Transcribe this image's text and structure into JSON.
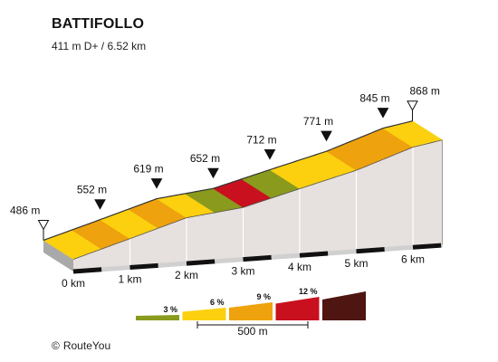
{
  "chart_data": {
    "type": "area",
    "title": "BATTIFOLLO",
    "subtitle": "411 m D+ / 6.52 km",
    "x_unit": "km",
    "y_unit": "m",
    "xlim": [
      0,
      6.52
    ],
    "x_ticks": [
      {
        "value": 0,
        "label": "0 km"
      },
      {
        "value": 1,
        "label": "1 km"
      },
      {
        "value": 2,
        "label": "2 km"
      },
      {
        "value": 3,
        "label": "3 km"
      },
      {
        "value": 4,
        "label": "4 km"
      },
      {
        "value": 5,
        "label": "5 km"
      },
      {
        "value": 6,
        "label": "6 km"
      }
    ],
    "elevation_points": [
      {
        "distance_km": 0,
        "elevation_m": 486,
        "label": "486 m",
        "marker": "start"
      },
      {
        "distance_km": 1,
        "elevation_m": 552,
        "label": "552 m",
        "marker": "km"
      },
      {
        "distance_km": 2,
        "elevation_m": 619,
        "label": "619 m",
        "marker": "km"
      },
      {
        "distance_km": 3,
        "elevation_m": 652,
        "label": "652 m",
        "marker": "km"
      },
      {
        "distance_km": 4,
        "elevation_m": 712,
        "label": "712 m",
        "marker": "km"
      },
      {
        "distance_km": 5,
        "elevation_m": 771,
        "label": "771 m",
        "marker": "km"
      },
      {
        "distance_km": 6,
        "elevation_m": 845,
        "label": "845 m",
        "marker": "km"
      },
      {
        "distance_km": 6.52,
        "elevation_m": 868,
        "label": "868 m",
        "marker": "end"
      }
    ],
    "segments": [
      {
        "from_km": 0.0,
        "to_km": 0.5,
        "class": 6
      },
      {
        "from_km": 0.5,
        "to_km": 1.0,
        "class": 9
      },
      {
        "from_km": 1.0,
        "to_km": 1.5,
        "class": 6
      },
      {
        "from_km": 1.5,
        "to_km": 2.0,
        "class": 9
      },
      {
        "from_km": 2.0,
        "to_km": 2.5,
        "class": 6
      },
      {
        "from_km": 2.5,
        "to_km": 3.0,
        "class": 3
      },
      {
        "from_km": 3.0,
        "to_km": 3.5,
        "class": 12
      },
      {
        "from_km": 3.5,
        "to_km": 4.0,
        "class": 3
      },
      {
        "from_km": 4.0,
        "to_km": 4.5,
        "class": 6
      },
      {
        "from_km": 4.5,
        "to_km": 5.0,
        "class": 6
      },
      {
        "from_km": 5.0,
        "to_km": 5.5,
        "class": 9
      },
      {
        "from_km": 5.5,
        "to_km": 6.0,
        "class": 9
      },
      {
        "from_km": 6.0,
        "to_km": 6.52,
        "class": 6
      }
    ],
    "legend": {
      "items": [
        {
          "label": "3 %",
          "color": "#8a9a1c"
        },
        {
          "label": "6 %",
          "color": "#fcd00f"
        },
        {
          "label": "9 %",
          "color": "#eea20d"
        },
        {
          "label": "12 %",
          "color": "#c8101e"
        },
        {
          "label": "",
          "color": "#4f1511"
        }
      ],
      "scale_label": "500 m"
    },
    "colors": {
      "3": "#8a9a1c",
      "6": "#fcd00f",
      "9": "#eea20d",
      "12": "#c8101e",
      "wall": "#e6e0de",
      "base": "#a9a9a9",
      "axis": "#111111"
    }
  },
  "footer": {
    "symbol": "©",
    "text": "RouteYou"
  }
}
